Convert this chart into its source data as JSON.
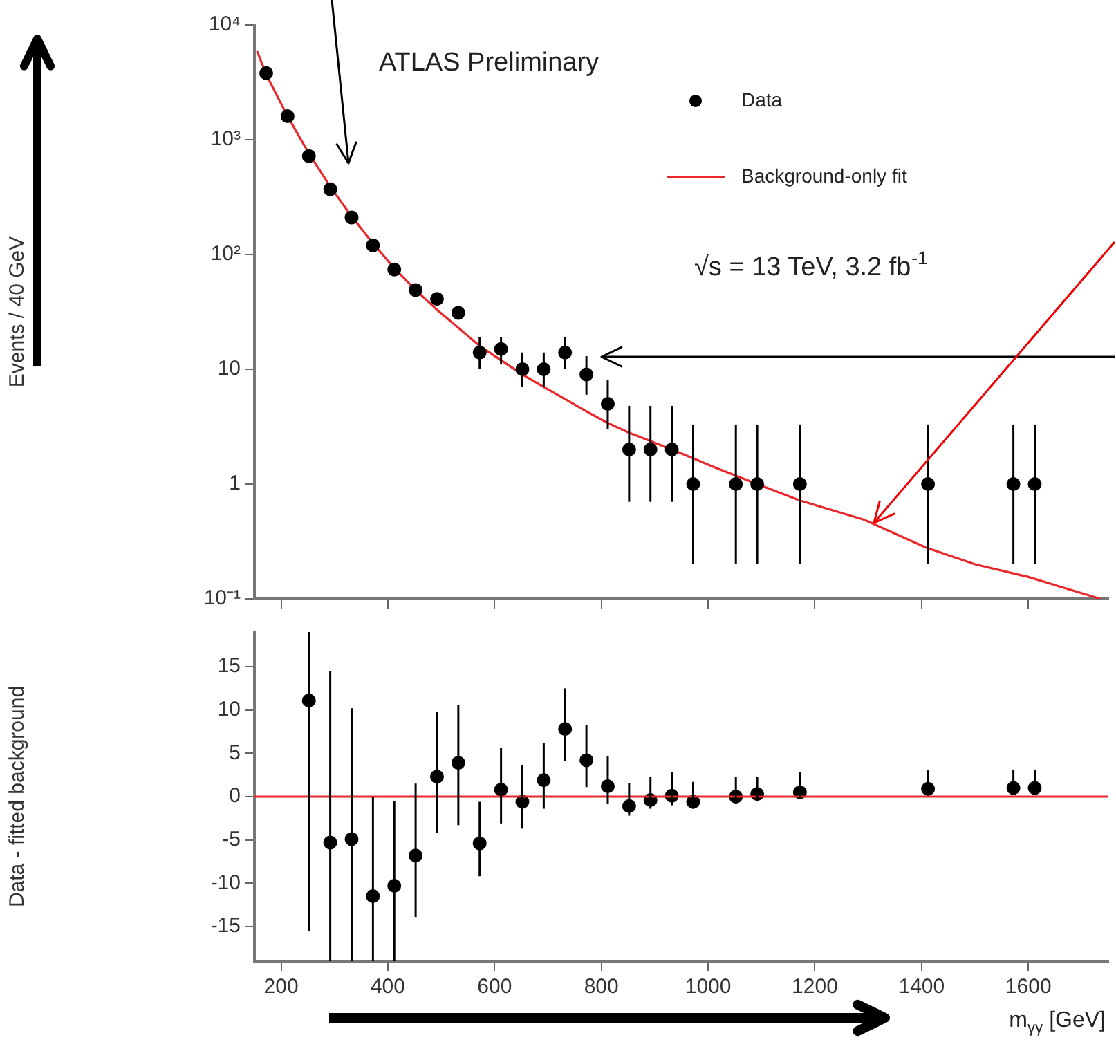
{
  "chart_data": [
    {
      "type": "scatter",
      "ylabel": "Events / 40 GeV",
      "annotations": [
        "ATLAS Preliminary",
        "√s = 13 TeV, 3.2 fb$^{-1}$"
      ],
      "log": "y",
      "legend": "top right",
      "grid": false,
      "tick_labels": "y",
      "xlim": [
        150,
        1750
      ],
      "xticks": [
        200,
        400,
        600,
        800,
        1000,
        1200,
        1400,
        1600
      ],
      "ylim": [
        0.1,
        10000
      ],
      "yticks": [
        {
          "value": 0.1,
          "label": "10⁻¹"
        },
        1,
        10,
        {
          "value": 100,
          "label": "10²"
        },
        {
          "value": 1000,
          "label": "10³"
        },
        {
          "value": 10000,
          "label": "10⁴"
        }
      ],
      "series": [
        {
          "name": "Data",
          "type": "scatter",
          "color": "#000000",
          "marker": "circle",
          "x": [
            172,
            212,
            252,
            292,
            332,
            372,
            412,
            452,
            492,
            532,
            572,
            612,
            652,
            692,
            732,
            772,
            812,
            852,
            892,
            932,
            972,
            1052,
            1092,
            1172,
            1412,
            1572,
            1612
          ],
          "values": [
            3800,
            1600,
            720,
            370,
            210,
            120,
            74,
            49,
            41,
            31,
            14,
            15,
            10,
            10,
            14,
            9,
            5,
            2,
            2,
            2,
            1,
            1,
            1,
            1,
            1,
            1,
            1
          ],
          "errors": [
            null,
            null,
            null,
            null,
            null,
            null,
            null,
            null,
            null,
            null,
            [
              10,
              19
            ],
            [
              11,
              19
            ],
            [
              7,
              14
            ],
            [
              7,
              14
            ],
            [
              10,
              19
            ],
            [
              6,
              13
            ],
            [
              3,
              8
            ],
            [
              0.7,
              4.8
            ],
            [
              0.7,
              4.8
            ],
            [
              0.7,
              4.8
            ],
            [
              0.2,
              3.3
            ],
            [
              0.2,
              3.3
            ],
            [
              0.2,
              3.3
            ],
            [
              0.2,
              3.3
            ],
            [
              0.2,
              3.3
            ],
            [
              0.2,
              3.3
            ],
            [
              0.2,
              3.3
            ]
          ]
        },
        {
          "name": "Background-only fit",
          "type": "line",
          "color": "#e8282b",
          "marker": "none",
          "line_style": "solid",
          "x": [
            155,
            172,
            212,
            252,
            292,
            332,
            372,
            412,
            452,
            492,
            532,
            572,
            612,
            652,
            692,
            732,
            772,
            812,
            852,
            932,
            1012,
            1092,
            1172,
            1292,
            1408,
            1500,
            1600,
            1735
          ],
          "values": [
            5900,
            3700,
            1600,
            760,
            390,
            215,
            125,
            76,
            49,
            33,
            23,
            16,
            12,
            9,
            7,
            5.5,
            4.3,
            3.4,
            2.8,
            2.0,
            1.4,
            1.0,
            0.72,
            0.49,
            0.28,
            0.2,
            0.155,
            0.1
          ]
        }
      ]
    },
    {
      "type": "scatter",
      "ylabel": "Data - fitted background",
      "xlabel": "m$_{γγ}$ [GeV]",
      "grid": false,
      "xlim": [
        150,
        1750
      ],
      "xticks": [
        200,
        400,
        600,
        800,
        1000,
        1200,
        1400,
        1600
      ],
      "ylim": [
        -19,
        19
      ],
      "yticks": [
        -15,
        -10,
        -5,
        0,
        5,
        10,
        15
      ],
      "ref_lines": [
        {
          "axis": "y",
          "value": 0,
          "color": "#e8282b"
        }
      ],
      "series": [
        {
          "type": "scatter",
          "color": "#000000",
          "marker": "circle",
          "x": [
            252,
            292,
            332,
            372,
            412,
            452,
            492,
            532,
            572,
            612,
            652,
            692,
            732,
            772,
            812,
            852,
            892,
            932,
            972,
            1052,
            1092,
            1172,
            1412,
            1572,
            1612
          ],
          "values": [
            11.1,
            -5.3,
            -4.9,
            -11.5,
            -10.3,
            -6.8,
            2.3,
            3.9,
            -5.4,
            0.8,
            -0.6,
            1.9,
            7.8,
            4.2,
            1.2,
            -1.1,
            -0.4,
            0.1,
            -0.6,
            0,
            0.3,
            0.5,
            0.9,
            1.0,
            1.0
          ],
          "errors": [
            [
              -15.5,
              19
            ],
            [
              -19,
              14.5
            ],
            [
              -19,
              10.2
            ],
            [
              -19,
              0
            ],
            [
              -19,
              -0.5
            ],
            [
              -13.9,
              1.5
            ],
            [
              -4.2,
              9.8
            ],
            [
              -3.3,
              10.6
            ],
            [
              -9.2,
              -0.6
            ],
            [
              -3.1,
              5.6
            ],
            [
              -3.7,
              3.6
            ],
            [
              -1.4,
              6.2
            ],
            [
              4.1,
              12.5
            ],
            [
              1.1,
              8.3
            ],
            [
              -0.8,
              4.7
            ],
            [
              -2.2,
              1.6
            ],
            [
              -1.4,
              2.3
            ],
            [
              -1.0,
              2.8
            ],
            [
              -1.4,
              1.7
            ],
            [
              -0.8,
              2.3
            ],
            [
              -0.5,
              2.3
            ],
            [
              -0.3,
              2.8
            ],
            [
              0.1,
              3.1
            ],
            [
              0.2,
              3.1
            ],
            [
              0.2,
              3.1
            ]
          ]
        }
      ]
    }
  ]
}
